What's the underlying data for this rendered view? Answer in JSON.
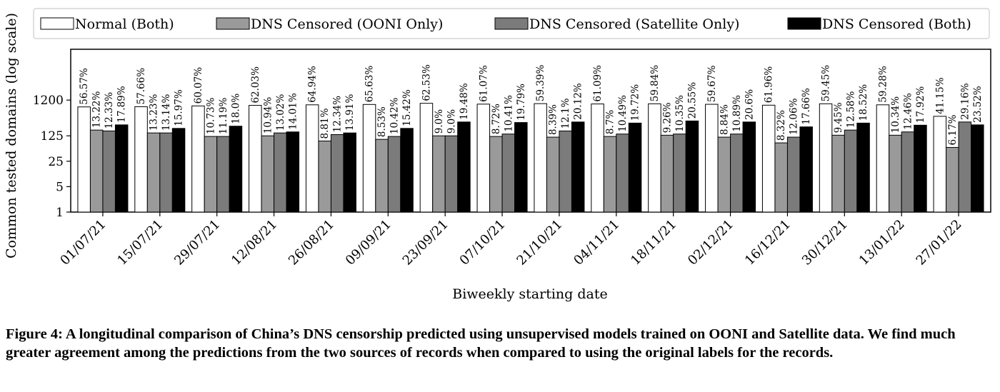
{
  "chart_data": {
    "type": "bar",
    "ylabel": "Common tested domains (log scale)",
    "xlabel": "Biweekly starting date",
    "yscale": "log",
    "ylim": [
      1,
      30000
    ],
    "yticks": [
      1,
      5,
      25,
      125,
      1200
    ],
    "ytick_labels": [
      "1",
      "5",
      "25",
      "125",
      "1200"
    ],
    "legend_position": "top",
    "categories": [
      "01/07/21",
      "15/07/21",
      "29/07/21",
      "12/08/21",
      "26/08/21",
      "09/09/21",
      "23/09/21",
      "07/10/21",
      "21/10/21",
      "04/11/21",
      "18/11/21",
      "02/12/21",
      "16/12/21",
      "30/12/21",
      "13/01/22",
      "27/01/22"
    ],
    "series": [
      {
        "name": "Normal (Both)",
        "color": "#ffffff",
        "values": [
          780,
          790,
          830,
          860,
          890,
          910,
          980,
          930,
          960,
          940,
          950,
          920,
          870,
          950,
          890,
          430
        ],
        "labels": [
          "56.57%",
          "57.66%",
          "60.07%",
          "62.03%",
          "64.94%",
          "65.63%",
          "62.53%",
          "61.07%",
          "59.39%",
          "61.09%",
          "59.84%",
          "59.67%",
          "61.96%",
          "59.45%",
          "59.28%",
          "41.15%"
        ]
      },
      {
        "name": "DNS Censored (OONI Only)",
        "color": "#9a9a9a",
        "values": [
          180,
          150,
          120,
          125,
          90,
          100,
          125,
          120,
          115,
          120,
          130,
          115,
          80,
          130,
          130,
          60
        ],
        "labels": [
          "13.22%",
          "13.23%",
          "10.73%",
          "10.94%",
          "8.81%",
          "8.53%",
          "9.0%",
          "8.72%",
          "8.39%",
          "8.7%",
          "9.26%",
          "8.84%",
          "8.32%",
          "9.45%",
          "10.34%",
          "6.17%"
        ]
      },
      {
        "name": "DNS Censored (Satellite Only)",
        "color": "#7b7b7b",
        "values": [
          170,
          150,
          120,
          150,
          135,
          120,
          125,
          140,
          170,
          140,
          140,
          140,
          115,
          180,
          160,
          300
        ],
        "labels": [
          "12.33%",
          "13.14%",
          "11.19%",
          "13.02%",
          "12.34%",
          "10.42%",
          "9.0%",
          "10.41%",
          "12.1%",
          "10.49%",
          "10.35%",
          "10.89%",
          "12.06%",
          "12.58%",
          "12.46%",
          "29.16%"
        ]
      },
      {
        "name": "DNS Censored (Both)",
        "color": "#000000",
        "values": [
          250,
          200,
          230,
          160,
          150,
          200,
          300,
          290,
          300,
          280,
          320,
          300,
          220,
          280,
          245,
          250
        ],
        "labels": [
          "17.89%",
          "15.97%",
          "18.0%",
          "14.01%",
          "13.91%",
          "15.42%",
          "19.48%",
          "19.79%",
          "20.12%",
          "19.72%",
          "20.55%",
          "20.6%",
          "17.66%",
          "18.52%",
          "17.92%",
          "23.52%"
        ]
      }
    ]
  },
  "caption": "Figure 4: A longitudinal comparison of China’s DNS censorship predicted using unsupervised models trained on OONI and Satellite data. We find much greater agreement among the predictions from the two sources of records when compared to using the original labels for the records."
}
